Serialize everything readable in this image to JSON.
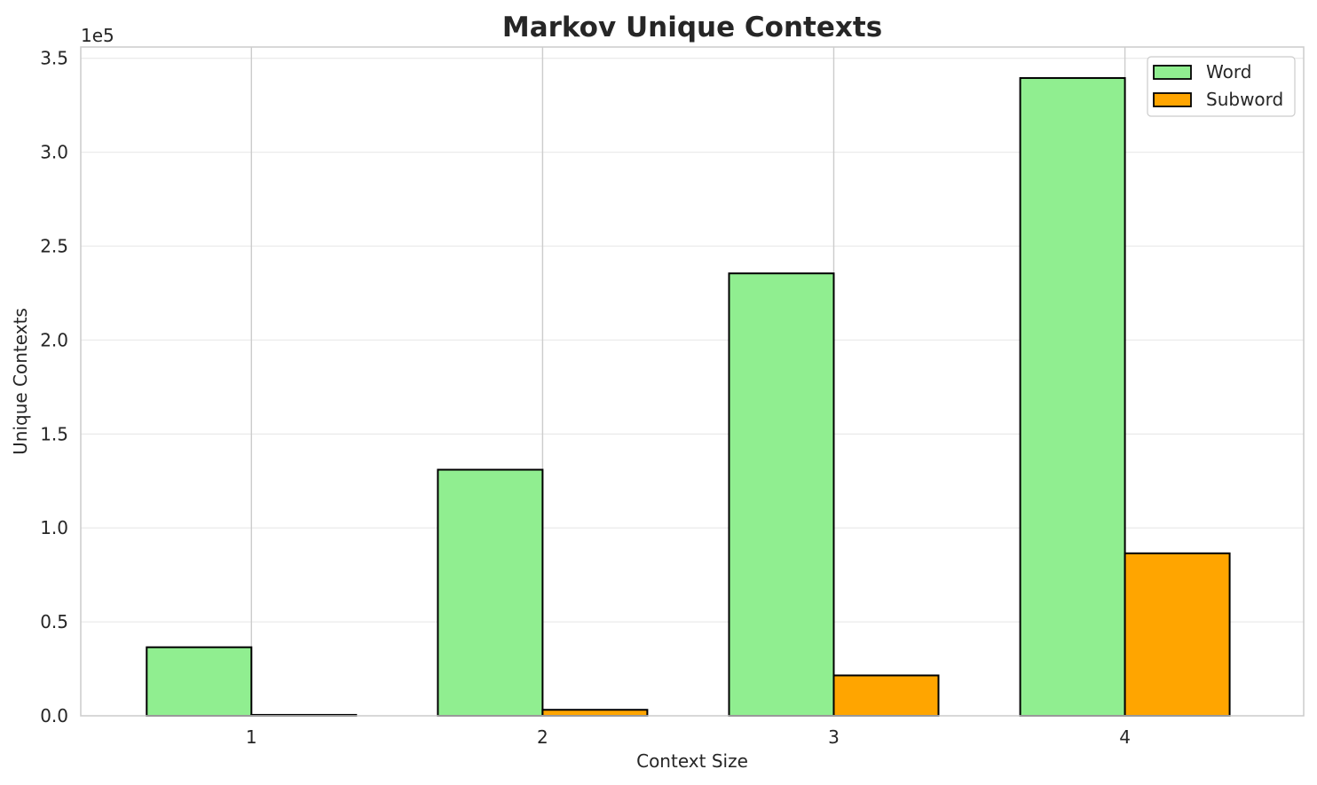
{
  "chart_data": {
    "type": "bar",
    "title": "Markov Unique Contexts",
    "xlabel": "Context Size",
    "ylabel": "Unique Contexts",
    "y_offset_label": "1e5",
    "categories": [
      "1",
      "2",
      "3",
      "4"
    ],
    "series": [
      {
        "name": "Word",
        "color": "#90ee90",
        "values": [
          36500,
          131000,
          235500,
          339500
        ]
      },
      {
        "name": "Subword",
        "color": "#ffa500",
        "values": [
          500,
          3200,
          21500,
          86500
        ]
      }
    ],
    "ylim": [
      0,
      356000
    ],
    "yticks": [
      0,
      50000,
      100000,
      150000,
      200000,
      250000,
      300000,
      350000
    ],
    "ytick_labels": [
      "0.0",
      "0.5",
      "1.0",
      "1.5",
      "2.0",
      "2.5",
      "3.0",
      "3.5"
    ],
    "grid": true,
    "legend_position": "top-right"
  }
}
